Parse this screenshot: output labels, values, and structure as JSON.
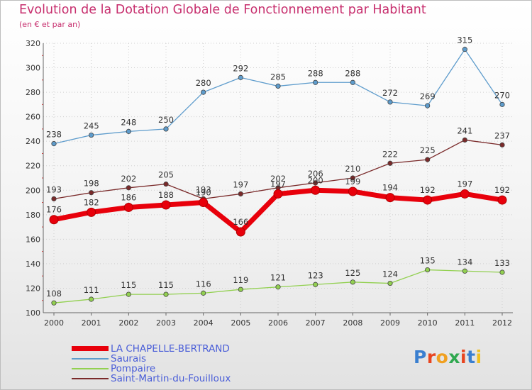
{
  "title": "Evolution de la Dotation Globale de Fonctionnement par Habitant",
  "subtitle": "(en € et par an)",
  "logo_text": "Proxiti",
  "chart_data": {
    "type": "line",
    "categories": [
      "2000",
      "2001",
      "2002",
      "2003",
      "2004",
      "2005",
      "2006",
      "2007",
      "2008",
      "2009",
      "2010",
      "2011",
      "2012"
    ],
    "ylim": [
      100,
      320
    ],
    "yticks": [
      "100",
      "120",
      "140",
      "160",
      "180",
      "200",
      "220",
      "240",
      "260",
      "280",
      "300",
      "320"
    ],
    "grid": true,
    "legend_position": "bottom-left",
    "series": [
      {
        "name": "LA CHAPELLE-BERTRAND",
        "color": "#e8000b",
        "values": [
          176,
          182,
          186,
          188,
          190,
          166,
          197,
          200,
          199,
          194,
          192,
          197,
          192
        ]
      },
      {
        "name": "Saurais",
        "color": "#5e9ccc",
        "values": [
          238,
          245,
          248,
          250,
          280,
          292,
          285,
          288,
          288,
          272,
          269,
          315,
          270
        ]
      },
      {
        "name": "Pompaire",
        "color": "#92d050",
        "values": [
          108,
          111,
          115,
          115,
          116,
          119,
          121,
          123,
          125,
          124,
          135,
          134,
          133
        ]
      },
      {
        "name": "Saint-Martin-du-Fouilloux",
        "color": "#7a2a2a",
        "values": [
          193,
          198,
          202,
          205,
          193,
          197,
          202,
          206,
          210,
          222,
          225,
          241,
          237
        ]
      }
    ]
  }
}
